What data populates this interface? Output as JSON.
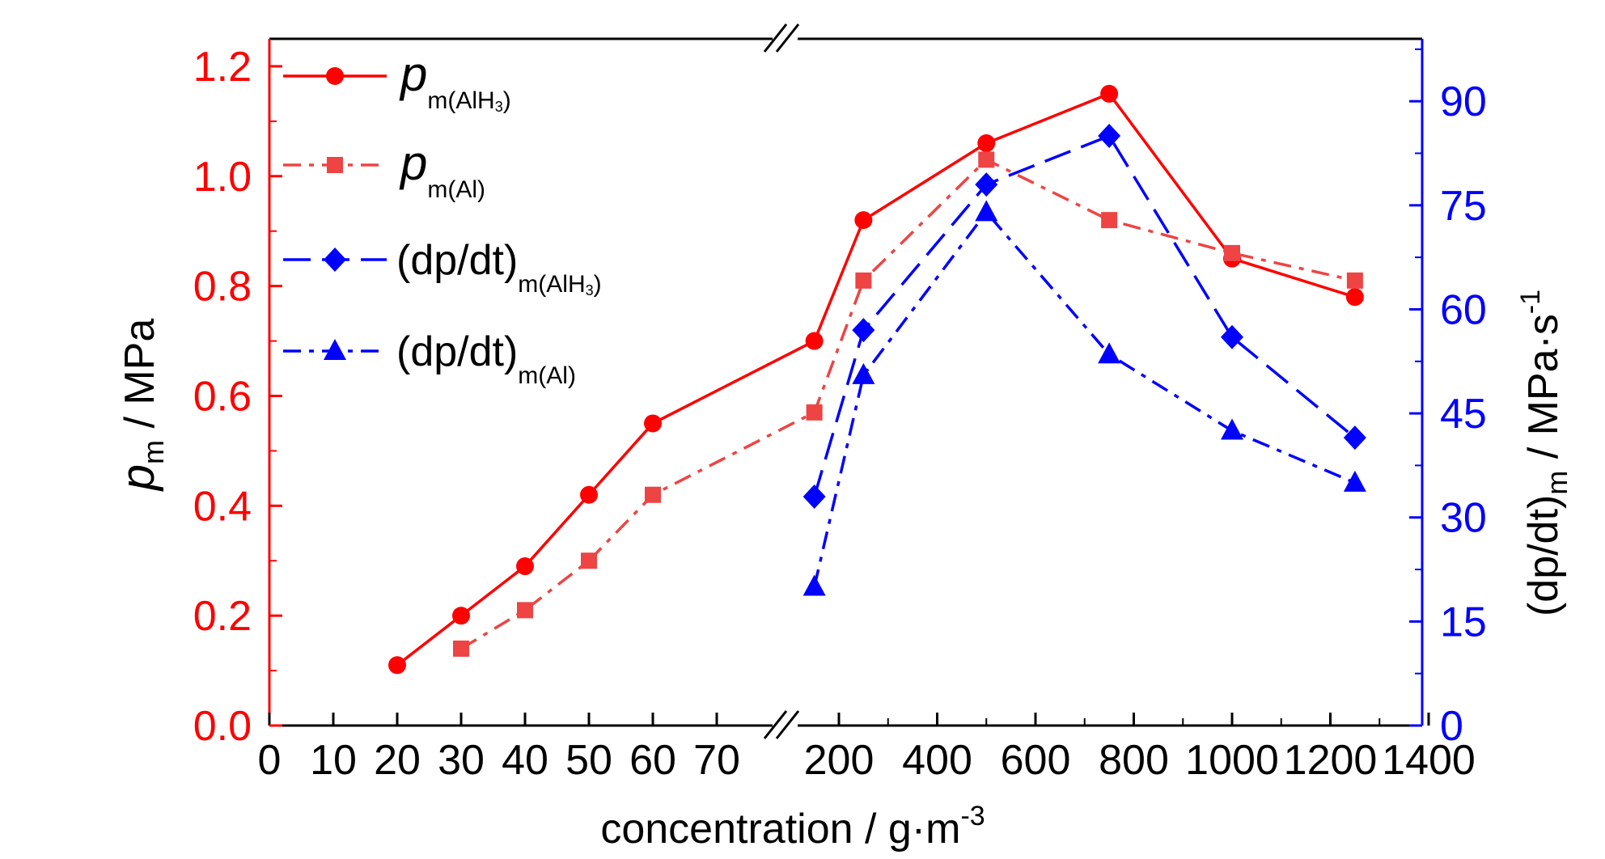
{
  "colors": {
    "left_axis": "#ff0000",
    "right_axis": "#0000ff",
    "frame": "#000000",
    "series_pm_alh3": "#ff0000",
    "series_pm_al": "#ee4444",
    "series_dpdt_alh3": "#0000ff",
    "series_dpdt_al": "#0000ff"
  },
  "chart_data": {
    "type": "line",
    "xlabel": "concentration / g·m",
    "xlabel_sup": "-3",
    "ylabel_left": {
      "main": "p",
      "sub": "m",
      "unit": " / MPa"
    },
    "ylabel_right": {
      "main": "(dp/dt)",
      "sub": "m",
      "unit": " / MPa·s",
      "sup": "-1"
    },
    "x_axis_note": "broken axis: 0–70 linear, then 200–1400 linear",
    "x_ticks_low": [
      0,
      10,
      20,
      30,
      40,
      50,
      60,
      70
    ],
    "x_ticks_high": [
      200,
      400,
      600,
      800,
      1000,
      1200,
      1400
    ],
    "x_tick_labels": [
      "0",
      "10",
      "20",
      "30",
      "40",
      "50",
      "60",
      "70",
      "200",
      "400",
      "600",
      "800",
      "1000",
      "1200",
      "1400"
    ],
    "y_left_ticks": [
      "0.0",
      "0.2",
      "0.4",
      "0.6",
      "0.8",
      "1.0",
      "1.2"
    ],
    "y_left_lim": [
      0,
      1.25
    ],
    "y_right_ticks": [
      "0",
      "15",
      "30",
      "45",
      "60",
      "75",
      "90"
    ],
    "y_right_lim": [
      0,
      99
    ],
    "legend_position": "top-left",
    "series": [
      {
        "name": "p m(AlH3)",
        "legend_main": "p",
        "legend_sub": "m(AlH",
        "legend_sub2": "3",
        "legend_sub3": ")",
        "axis": "left",
        "marker": "circle",
        "line": "solid",
        "points": [
          [
            20,
            0.11
          ],
          [
            30,
            0.2
          ],
          [
            40,
            0.29
          ],
          [
            50,
            0.42
          ],
          [
            60,
            0.55
          ],
          [
            150,
            0.7
          ],
          [
            250,
            0.92
          ],
          [
            500,
            1.06
          ],
          [
            750,
            1.15
          ],
          [
            1000,
            0.85
          ],
          [
            1250,
            0.78
          ]
        ]
      },
      {
        "name": "p m(Al)",
        "legend_main": "p",
        "legend_sub": "m(Al)",
        "axis": "left",
        "marker": "square",
        "line": "dashdot",
        "points": [
          [
            30,
            0.14
          ],
          [
            40,
            0.21
          ],
          [
            50,
            0.3
          ],
          [
            60,
            0.42
          ],
          [
            150,
            0.57
          ],
          [
            250,
            0.81
          ],
          [
            500,
            1.03
          ],
          [
            750,
            0.92
          ],
          [
            1000,
            0.86
          ],
          [
            1250,
            0.81
          ]
        ]
      },
      {
        "name": "(dp/dt) m(AlH3)",
        "legend_main": "(dp/dt)",
        "legend_sub": "m(AlH",
        "legend_sub2": "3",
        "legend_sub3": ")",
        "axis": "right",
        "marker": "diamond",
        "line": "longdash",
        "points": [
          [
            150,
            33
          ],
          [
            250,
            57
          ],
          [
            500,
            78
          ],
          [
            750,
            85
          ],
          [
            1000,
            56
          ],
          [
            1250,
            41.5
          ]
        ]
      },
      {
        "name": "(dp/dt) m(Al)",
        "legend_main": "(dp/dt)",
        "legend_sub": "m(Al)",
        "axis": "right",
        "marker": "triangle",
        "line": "dashdot",
        "points": [
          [
            150,
            20
          ],
          [
            250,
            50.5
          ],
          [
            500,
            74
          ],
          [
            750,
            53.5
          ],
          [
            1000,
            42.5
          ],
          [
            1250,
            35
          ]
        ]
      }
    ]
  }
}
